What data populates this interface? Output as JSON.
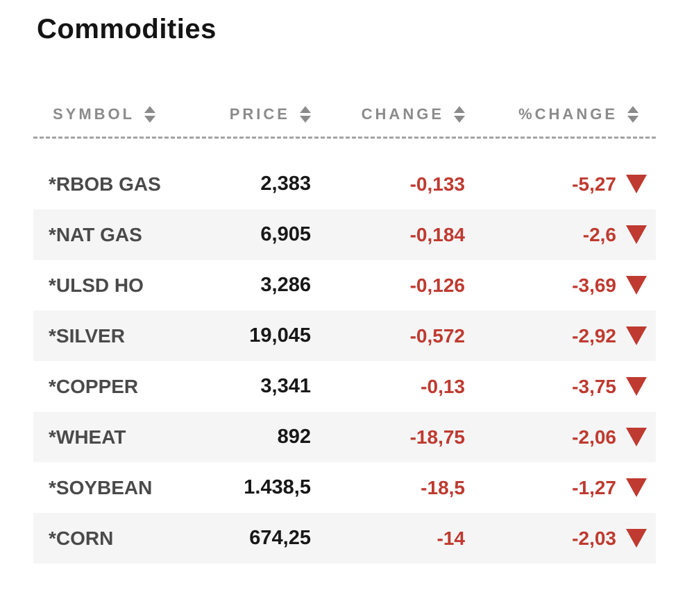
{
  "page": {
    "title": "Commodities"
  },
  "colors": {
    "negative_red": "#bf3a30",
    "header_gray": "#8b8b8b",
    "symbol_gray": "#4a4a4a",
    "price_black": "#181818",
    "row_alt_bg": "#f5f5f5"
  },
  "icons": {
    "sort": "sort-updown-icon",
    "down": "triangle-down-icon"
  },
  "table": {
    "columns": [
      {
        "label": "SYMBOL"
      },
      {
        "label": "PRICE"
      },
      {
        "label": "CHANGE"
      },
      {
        "label": "%CHANGE"
      }
    ],
    "rows": [
      {
        "symbol": "*RBOB GAS",
        "price": "2,383",
        "change": "-0,133",
        "pct_change": "-5,27",
        "direction": "down"
      },
      {
        "symbol": "*NAT GAS",
        "price": "6,905",
        "change": "-0,184",
        "pct_change": "-2,6",
        "direction": "down"
      },
      {
        "symbol": "*ULSD HO",
        "price": "3,286",
        "change": "-0,126",
        "pct_change": "-3,69",
        "direction": "down"
      },
      {
        "symbol": "*SILVER",
        "price": "19,045",
        "change": "-0,572",
        "pct_change": "-2,92",
        "direction": "down"
      },
      {
        "symbol": "*COPPER",
        "price": "3,341",
        "change": "-0,13",
        "pct_change": "-3,75",
        "direction": "down"
      },
      {
        "symbol": "*WHEAT",
        "price": "892",
        "change": "-18,75",
        "pct_change": "-2,06",
        "direction": "down"
      },
      {
        "symbol": "*SOYBEAN",
        "price": "1.438,5",
        "change": "-18,5",
        "pct_change": "-1,27",
        "direction": "down"
      },
      {
        "symbol": "*CORN",
        "price": "674,25",
        "change": "-14",
        "pct_change": "-2,03",
        "direction": "down"
      }
    ]
  }
}
